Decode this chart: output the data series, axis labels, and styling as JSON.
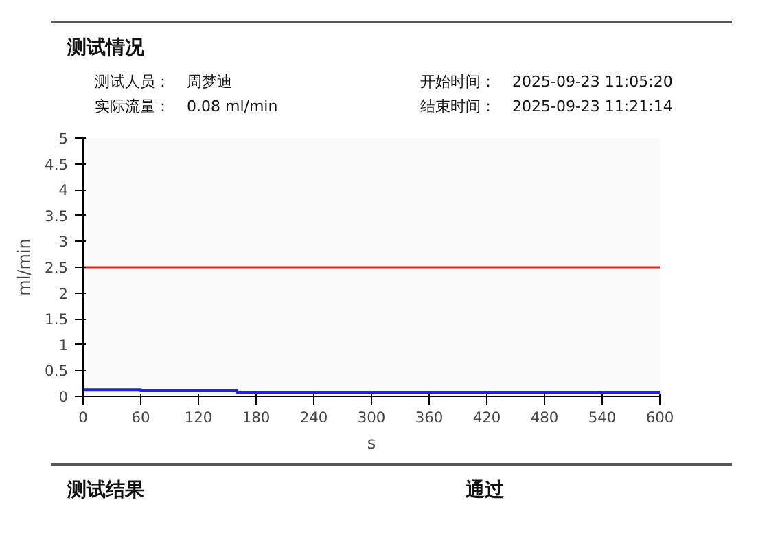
{
  "chart_data": {
    "type": "step",
    "title": "测试情况",
    "annotations": [
      "测试人员：",
      "周梦迪",
      "实际流量：",
      "0.08 ml/min",
      "开始时间：",
      "2025-09-23 11:05:20",
      "结束时间：",
      "2025-09-23 11:21:14",
      "测试结果",
      "通过"
    ],
    "x": [
      0,
      60,
      160,
      600
    ],
    "series": [
      {
        "color": "#2020e0",
        "values": [
          0.13,
          0.11,
          0.08,
          0.08
        ]
      }
    ],
    "ref_lines": [
      {
        "axis": "y",
        "value": 2.5,
        "color": "#e02020"
      }
    ],
    "xlabel": "s",
    "ylabel": "ml/min",
    "xlim": [
      0,
      600
    ],
    "xticks": [
      0,
      60,
      120,
      180,
      240,
      300,
      360,
      420,
      480,
      540,
      600
    ],
    "ylim": [
      0,
      5
    ],
    "yticks": [
      0,
      0.5,
      1,
      1.5,
      2,
      2.5,
      3,
      3.5,
      4,
      4.5,
      5
    ],
    "grid": false
  }
}
